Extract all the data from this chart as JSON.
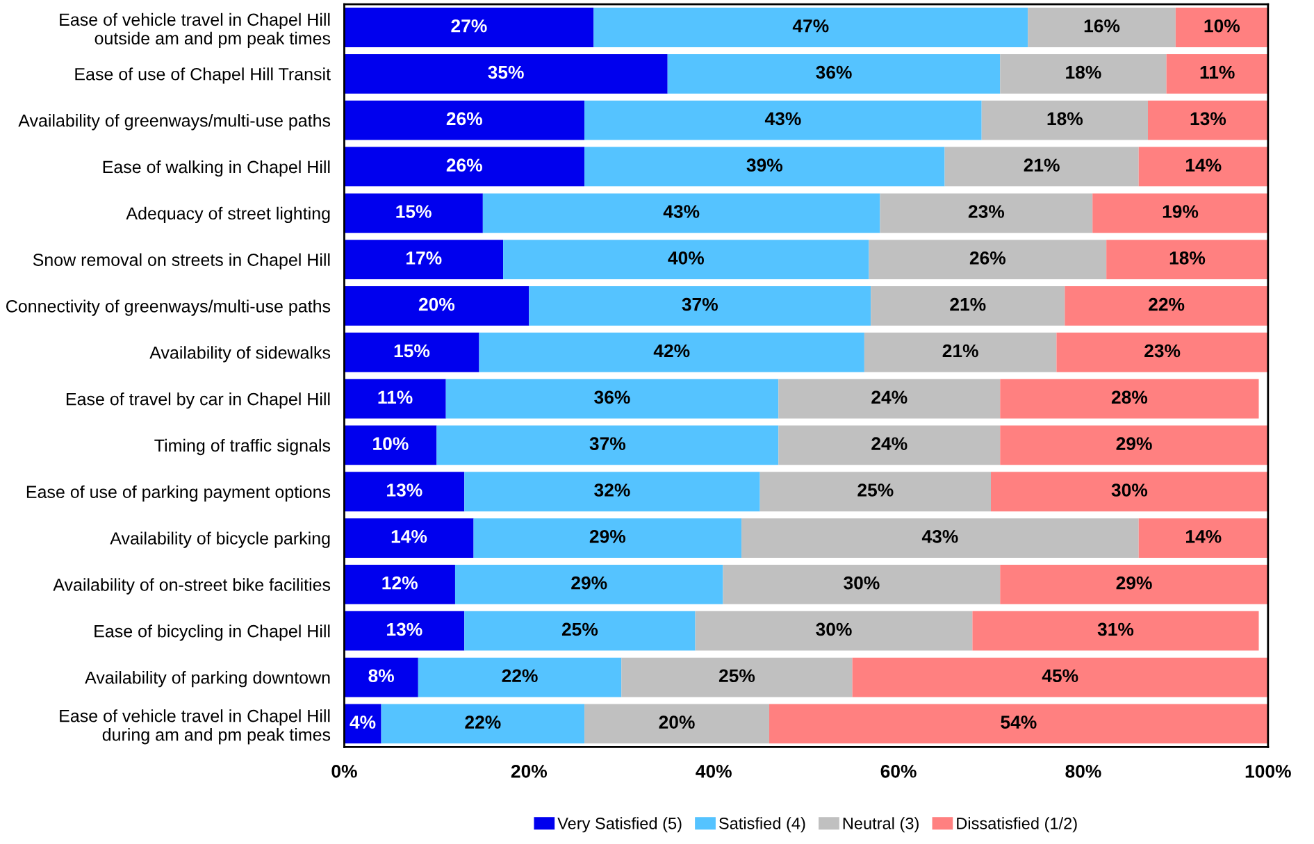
{
  "chart_data": {
    "type": "bar",
    "orientation": "horizontal",
    "stacked": true,
    "legend": "bottom",
    "categories": [
      "Ease of vehicle travel in Chapel Hill\noutside am and pm peak times",
      "Ease of use of Chapel Hill Transit",
      "Availability of greenways/multi-use paths",
      "Ease of walking in Chapel Hill",
      "Adequacy of street lighting",
      "Snow removal on streets in Chapel Hill",
      "Connectivity of greenways/multi-use paths",
      "Availability of sidewalks",
      "Ease of travel by car in Chapel Hill",
      "Timing of traffic signals",
      "Ease of use of parking payment options",
      "Availability of bicycle parking",
      "Availability of on-street bike facilities",
      "Ease of bicycling in Chapel Hill",
      "Availability of parking downtown",
      "Ease of vehicle travel in Chapel Hill\nduring am and pm peak times"
    ],
    "series": [
      {
        "name": "Very Satisfied (5)",
        "color": "#0000ee",
        "values": [
          27,
          35,
          26,
          26,
          15,
          17.2,
          20,
          14.6,
          11,
          10,
          13,
          14,
          12,
          13,
          8,
          4
        ],
        "value_labels": [
          "27%",
          "35%",
          "26%",
          "26%",
          "15%",
          "17%",
          "20%",
          "15%",
          "11%",
          "10%",
          "13%",
          "14%",
          "12%",
          "13%",
          "8%",
          "4%"
        ]
      },
      {
        "name": "Satisfied (4)",
        "color": "#55c3ff",
        "values": [
          47,
          36,
          43,
          39,
          43,
          39.6,
          37,
          41.7,
          36,
          37,
          32,
          29,
          29,
          25,
          22,
          22
        ],
        "value_labels": [
          "47%",
          "36%",
          "43%",
          "39%",
          "43%",
          "40%",
          "37%",
          "42%",
          "36%",
          "37%",
          "32%",
          "29%",
          "29%",
          "25%",
          "22%",
          "22%"
        ]
      },
      {
        "name": "Neutral (3)",
        "color": "#c0c0c0",
        "values": [
          16,
          18,
          18,
          21,
          23,
          25.7,
          21,
          20.8,
          24,
          24,
          25,
          43,
          30,
          30,
          25,
          20
        ],
        "value_labels": [
          "16%",
          "18%",
          "18%",
          "21%",
          "23%",
          "26%",
          "21%",
          "21%",
          "24%",
          "24%",
          "25%",
          "43%",
          "30%",
          "30%",
          "25%",
          "20%"
        ]
      },
      {
        "name": "Dissatisfied (1/2)",
        "color": "#ff8080",
        "values": [
          10,
          11,
          13,
          14,
          19,
          17.5,
          22,
          22.9,
          28,
          29,
          30,
          14,
          29,
          31,
          45,
          54
        ],
        "value_labels": [
          "10%",
          "11%",
          "13%",
          "14%",
          "19%",
          "18%",
          "22%",
          "23%",
          "28%",
          "29%",
          "30%",
          "14%",
          "29%",
          "31%",
          "45%",
          "54%"
        ]
      }
    ],
    "xlim": [
      0,
      100
    ],
    "xticks": [
      {
        "value": 0,
        "label": "0%"
      },
      {
        "value": 20,
        "label": "20%"
      },
      {
        "value": 40,
        "label": "40%"
      },
      {
        "value": 60,
        "label": "60%"
      },
      {
        "value": 80,
        "label": "80%"
      },
      {
        "value": 100,
        "label": "100%"
      }
    ]
  }
}
